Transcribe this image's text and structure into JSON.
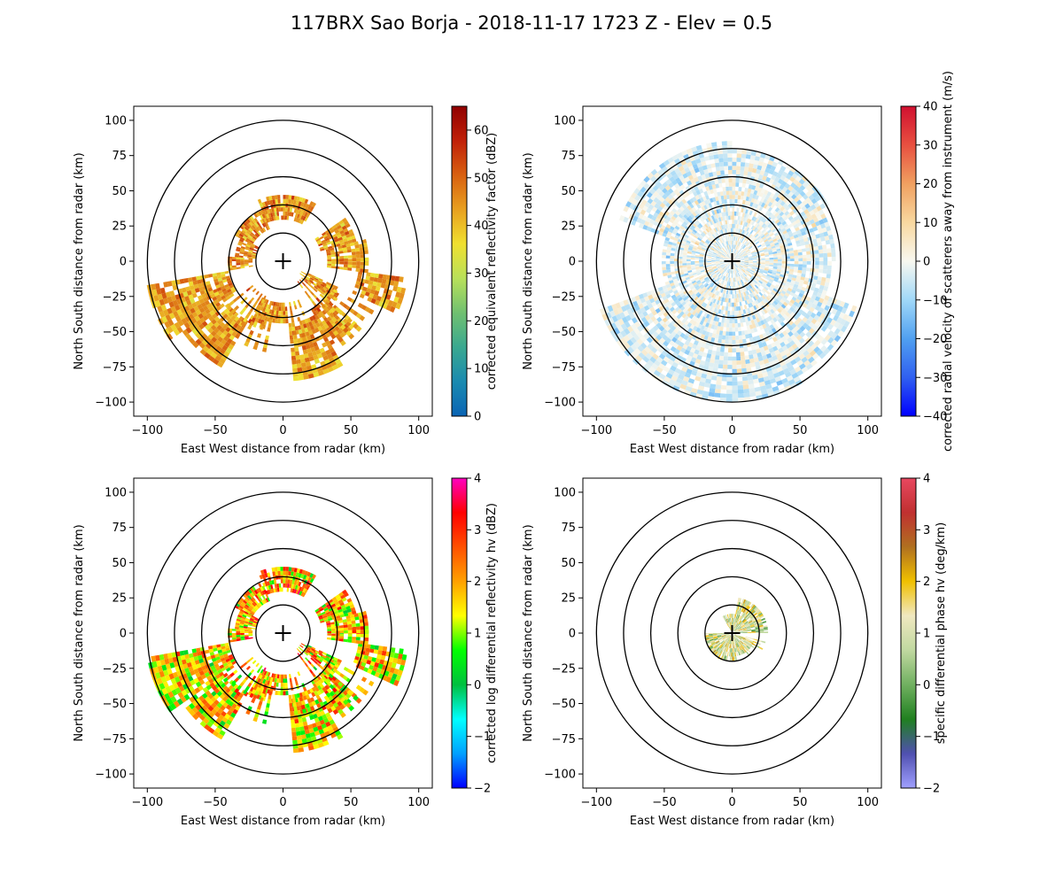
{
  "figure": {
    "title": "117BRX Sao Borja - 2018-11-17 1723 Z -  Elev = 0.5"
  },
  "colors": {
    "ring": "#000000",
    "axes": "#000000",
    "background": "#ffffff"
  },
  "chart_data": [
    {
      "type": "heatmap",
      "name": "reflectivity",
      "xlabel": "East West distance from radar (km)",
      "ylabel": "North South distance from radar (km)",
      "xlim": [
        -110,
        110
      ],
      "ylim": [
        -110,
        110
      ],
      "xticks": [
        -100,
        -50,
        0,
        50,
        100
      ],
      "yticks": [
        -100,
        -75,
        -50,
        -25,
        0,
        25,
        50,
        75,
        100
      ],
      "range_rings_km": [
        20,
        40,
        60,
        80,
        100
      ],
      "colorbar": {
        "label": "corrected equivalent reflectivity factor (dBZ)",
        "min": 0,
        "max": 65,
        "ticks": [
          0,
          10,
          20,
          30,
          40,
          50,
          60
        ],
        "colors": [
          "#0a64b4",
          "#1a8ab0",
          "#3aa890",
          "#70c070",
          "#b8e05a",
          "#f0e030",
          "#e8a020",
          "#d86010",
          "#c02008",
          "#900000"
        ]
      },
      "echo": {
        "sectors": [
          [
            60,
            112,
            30,
            48
          ],
          [
            112,
            150,
            25,
            40
          ],
          [
            150,
            175,
            20,
            34
          ],
          [
            175,
            190,
            22,
            40
          ],
          [
            190,
            215,
            40,
            98
          ],
          [
            215,
            240,
            50,
            88
          ],
          [
            240,
            255,
            30,
            50
          ],
          [
            255,
            275,
            30,
            45
          ],
          [
            275,
            300,
            45,
            85
          ],
          [
            300,
            320,
            40,
            70
          ],
          [
            320,
            335,
            20,
            45
          ],
          [
            335,
            352,
            55,
            90
          ],
          [
            352,
            360,
            32,
            60
          ],
          [
            0,
            15,
            32,
            60
          ],
          [
            15,
            35,
            28,
            55
          ]
        ],
        "streaks": [
          [
            35,
            62,
            15,
            75
          ],
          [
            -52,
            -25,
            28,
            55
          ],
          [
            -25,
            -8,
            40,
            65
          ],
          [
            8,
            25,
            30,
            58
          ]
        ],
        "center_values": [
          38,
          55
        ]
      }
    },
    {
      "type": "heatmap",
      "name": "velocity",
      "xlabel": "East West distance from radar (km)",
      "ylabel": "North South distance from radar (km)",
      "xlim": [
        -110,
        110
      ],
      "ylim": [
        -110,
        110
      ],
      "xticks": [
        -100,
        -50,
        0,
        50,
        100
      ],
      "yticks": [
        -100,
        -75,
        -50,
        -25,
        0,
        25,
        50,
        75,
        100
      ],
      "range_rings_km": [
        20,
        40,
        60,
        80,
        100
      ],
      "colorbar": {
        "label": "corrected radial velocity of scatterers away from instrument (m/s)",
        "min": -40,
        "max": 40,
        "ticks": [
          -40,
          -30,
          -20,
          -10,
          0,
          10,
          20,
          30,
          40
        ],
        "colors": [
          "#0000ff",
          "#3060f0",
          "#50a0f0",
          "#a0d8f8",
          "#f8f8f0",
          "#f8d8a0",
          "#f0a060",
          "#e85040",
          "#d01030"
        ]
      },
      "echo": {
        "sectors": [
          [
            30,
            90,
            0,
            80
          ],
          [
            90,
            160,
            0,
            85
          ],
          [
            160,
            200,
            0,
            50
          ],
          [
            200,
            250,
            0,
            100
          ],
          [
            250,
            300,
            0,
            100
          ],
          [
            300,
            340,
            0,
            95
          ],
          [
            340,
            360,
            0,
            70
          ],
          [
            0,
            30,
            0,
            75
          ]
        ],
        "streaks": [],
        "center_values": [
          -8,
          8
        ]
      }
    },
    {
      "type": "heatmap",
      "name": "differential-reflectivity",
      "xlabel": "East West distance from radar (km)",
      "ylabel": "North South distance from radar (km)",
      "xlim": [
        -110,
        110
      ],
      "ylim": [
        -110,
        110
      ],
      "xticks": [
        -100,
        -50,
        0,
        50,
        100
      ],
      "yticks": [
        -100,
        -75,
        -50,
        -25,
        0,
        25,
        50,
        75,
        100
      ],
      "range_rings_km": [
        20,
        40,
        60,
        80,
        100
      ],
      "colorbar": {
        "label": "corrected log differential reflectivity hv (dBZ)",
        "min": -2,
        "max": 4,
        "ticks": [
          -2,
          -1,
          0,
          1,
          2,
          3,
          4
        ],
        "colors": [
          "#0000ff",
          "#00a0ff",
          "#00ffff",
          "#00c040",
          "#00ff00",
          "#ffff00",
          "#ffa000",
          "#ff5000",
          "#ff0000",
          "#ff00c0"
        ]
      },
      "echo": {
        "sectors": [
          [
            60,
            112,
            30,
            48
          ],
          [
            112,
            150,
            25,
            40
          ],
          [
            150,
            175,
            20,
            34
          ],
          [
            175,
            190,
            22,
            40
          ],
          [
            190,
            215,
            40,
            98
          ],
          [
            215,
            240,
            50,
            88
          ],
          [
            240,
            255,
            30,
            50
          ],
          [
            255,
            275,
            30,
            45
          ],
          [
            275,
            300,
            45,
            85
          ],
          [
            300,
            320,
            40,
            70
          ],
          [
            320,
            335,
            20,
            45
          ],
          [
            335,
            352,
            55,
            90
          ],
          [
            352,
            360,
            32,
            60
          ],
          [
            0,
            15,
            32,
            60
          ],
          [
            15,
            35,
            28,
            55
          ]
        ],
        "streaks": [
          [
            35,
            62,
            15,
            75
          ],
          [
            -52,
            -25,
            28,
            55
          ],
          [
            -25,
            -8,
            40,
            65
          ],
          [
            8,
            25,
            30,
            58
          ]
        ],
        "center_values": [
          0.5,
          4
        ]
      }
    },
    {
      "type": "heatmap",
      "name": "specific-differential-phase",
      "xlabel": "East West distance from radar (km)",
      "ylabel": "North South distance from radar (km)",
      "xlim": [
        -110,
        110
      ],
      "ylim": [
        -110,
        110
      ],
      "xticks": [
        -100,
        -50,
        0,
        50,
        100
      ],
      "yticks": [
        -100,
        -75,
        -50,
        -25,
        0,
        25,
        50,
        75,
        100
      ],
      "range_rings_km": [
        20,
        40,
        60,
        80,
        100
      ],
      "colorbar": {
        "label": "specific differential phase hv (deg/km)",
        "min": -2,
        "max": 4,
        "ticks": [
          -2,
          -1,
          0,
          1,
          2,
          3,
          4
        ],
        "colors": [
          "#a0a0ff",
          "#5050b0",
          "#208020",
          "#70b060",
          "#c0d8a0",
          "#f0e8c0",
          "#f0c000",
          "#b07020",
          "#c03030",
          "#e84860"
        ]
      },
      "echo": {
        "sectors": [
          [
            180,
            280,
            2,
            18
          ],
          [
            280,
            340,
            2,
            15
          ],
          [
            0,
            80,
            2,
            25
          ],
          [
            80,
            120,
            2,
            14
          ]
        ],
        "streaks": [
          [
            -30,
            -20,
            6,
            20
          ],
          [
            30,
            45,
            8,
            18
          ],
          [
            55,
            75,
            10,
            24
          ]
        ],
        "center_values": [
          0,
          2.5
        ]
      }
    }
  ]
}
